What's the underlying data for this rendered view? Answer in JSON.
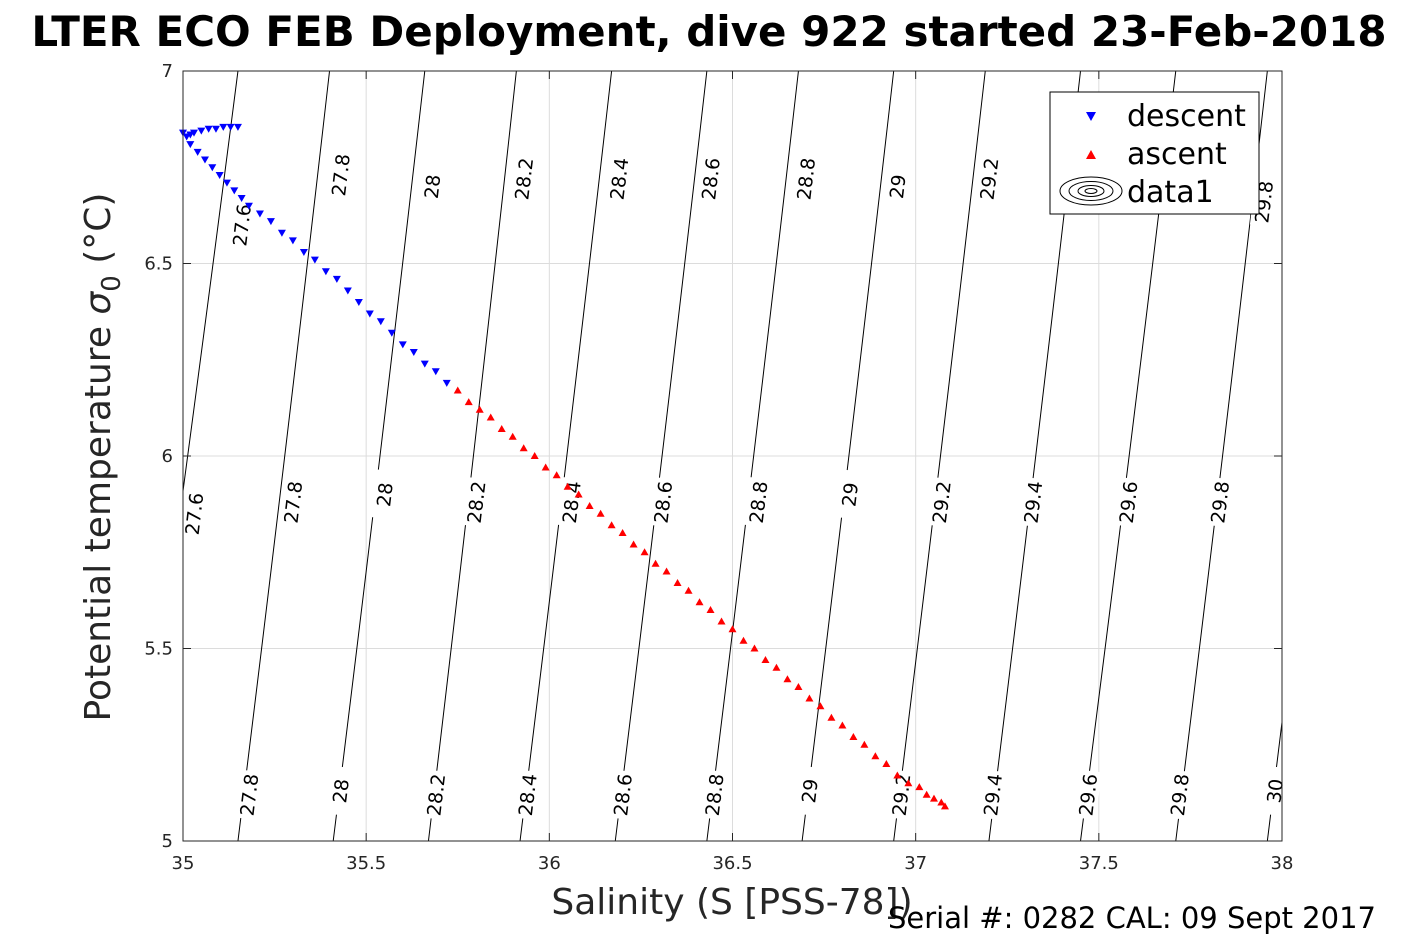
{
  "chart_data": {
    "type": "scatter",
    "title": "LTER ECO FEB Deployment, dive 922 started 23-Feb-2018",
    "xlabel": "Salinity (S [PSS-78])",
    "ylabel_text": "Potential temperature ",
    "ylabel_sigma": "σ",
    "ylabel_sub": "0",
    "ylabel_unit": " (°C)",
    "xlim": [
      35,
      38
    ],
    "ylim": [
      5,
      7
    ],
    "xticks": [
      35,
      35.5,
      36,
      36.5,
      37,
      37.5,
      38
    ],
    "yticks": [
      5,
      5.5,
      6,
      6.5,
      7
    ],
    "xtick_labels": [
      "35",
      "35.5",
      "36",
      "36.5",
      "37",
      "37.5",
      "38"
    ],
    "ytick_labels": [
      "5",
      "5.5",
      "6",
      "6.5",
      "7"
    ],
    "grid": true,
    "legend_position": "top-right",
    "footer": "Serial #: 0282  CAL: 09 Sept 2017",
    "series": [
      {
        "name": "descent",
        "marker": "triangle-down",
        "color": "#0000ff",
        "points": [
          [
            35.15,
            6.855
          ],
          [
            35.13,
            6.855
          ],
          [
            35.11,
            6.855
          ],
          [
            35.09,
            6.85
          ],
          [
            35.07,
            6.85
          ],
          [
            35.05,
            6.845
          ],
          [
            35.03,
            6.84
          ],
          [
            35.02,
            6.835
          ],
          [
            35.01,
            6.83
          ],
          [
            35.0,
            6.84
          ],
          [
            35.02,
            6.81
          ],
          [
            35.04,
            6.79
          ],
          [
            35.06,
            6.77
          ],
          [
            35.08,
            6.75
          ],
          [
            35.1,
            6.73
          ],
          [
            35.12,
            6.71
          ],
          [
            35.14,
            6.69
          ],
          [
            35.16,
            6.67
          ],
          [
            35.18,
            6.65
          ],
          [
            35.21,
            6.63
          ],
          [
            35.24,
            6.61
          ],
          [
            35.27,
            6.58
          ],
          [
            35.3,
            6.56
          ],
          [
            35.33,
            6.53
          ],
          [
            35.36,
            6.51
          ],
          [
            35.39,
            6.48
          ],
          [
            35.42,
            6.46
          ],
          [
            35.45,
            6.43
          ],
          [
            35.48,
            6.4
          ],
          [
            35.51,
            6.37
          ],
          [
            35.54,
            6.35
          ],
          [
            35.57,
            6.32
          ],
          [
            35.6,
            6.29
          ],
          [
            35.63,
            6.27
          ],
          [
            35.66,
            6.24
          ],
          [
            35.69,
            6.22
          ],
          [
            35.72,
            6.19
          ]
        ]
      },
      {
        "name": "ascent",
        "marker": "triangle-up",
        "color": "#ff0000",
        "points": [
          [
            35.75,
            6.17
          ],
          [
            35.78,
            6.14
          ],
          [
            35.81,
            6.12
          ],
          [
            35.84,
            6.1
          ],
          [
            35.87,
            6.07
          ],
          [
            35.9,
            6.05
          ],
          [
            35.93,
            6.02
          ],
          [
            35.96,
            6.0
          ],
          [
            35.99,
            5.97
          ],
          [
            36.02,
            5.95
          ],
          [
            36.05,
            5.92
          ],
          [
            36.08,
            5.9
          ],
          [
            36.11,
            5.87
          ],
          [
            36.14,
            5.85
          ],
          [
            36.17,
            5.82
          ],
          [
            36.2,
            5.8
          ],
          [
            36.23,
            5.77
          ],
          [
            36.26,
            5.75
          ],
          [
            36.29,
            5.72
          ],
          [
            36.32,
            5.7
          ],
          [
            36.35,
            5.67
          ],
          [
            36.38,
            5.65
          ],
          [
            36.41,
            5.62
          ],
          [
            36.44,
            5.6
          ],
          [
            36.47,
            5.57
          ],
          [
            36.5,
            5.55
          ],
          [
            36.53,
            5.52
          ],
          [
            36.56,
            5.5
          ],
          [
            36.59,
            5.47
          ],
          [
            36.62,
            5.45
          ],
          [
            36.65,
            5.42
          ],
          [
            36.68,
            5.4
          ],
          [
            36.71,
            5.37
          ],
          [
            36.74,
            5.35
          ],
          [
            36.77,
            5.32
          ],
          [
            36.8,
            5.3
          ],
          [
            36.83,
            5.27
          ],
          [
            36.86,
            5.25
          ],
          [
            36.89,
            5.22
          ],
          [
            36.92,
            5.2
          ],
          [
            36.95,
            5.17
          ],
          [
            36.98,
            5.15
          ],
          [
            37.01,
            5.14
          ],
          [
            37.03,
            5.12
          ],
          [
            37.05,
            5.11
          ],
          [
            37.07,
            5.1
          ],
          [
            37.08,
            5.09
          ]
        ]
      },
      {
        "name": "data1",
        "type": "contour",
        "color": "#000000",
        "lines": [
          {
            "label": "27.6",
            "bottom": [
              34.87,
              5.0
            ],
            "top": [
              35.15,
              7.0
            ]
          },
          {
            "label": "27.8",
            "bottom": [
              35.15,
              5.0
            ],
            "top": [
              35.4,
              7.0
            ]
          },
          {
            "label": "28",
            "bottom": [
              35.41,
              5.0
            ],
            "top": [
              35.66,
              7.0
            ]
          },
          {
            "label": "28.2",
            "bottom": [
              35.67,
              5.0
            ],
            "top": [
              35.91,
              7.0
            ]
          },
          {
            "label": "28.4",
            "bottom": [
              35.92,
              5.0
            ],
            "top": [
              36.17,
              7.0
            ]
          },
          {
            "label": "28.6",
            "bottom": [
              36.18,
              5.0
            ],
            "top": [
              36.43,
              7.0
            ]
          },
          {
            "label": "28.8",
            "bottom": [
              36.43,
              5.0
            ],
            "top": [
              36.68,
              7.0
            ]
          },
          {
            "label": "29",
            "bottom": [
              36.69,
              5.0
            ],
            "top": [
              36.94,
              7.0
            ]
          },
          {
            "label": "29.2",
            "bottom": [
              36.94,
              5.0
            ],
            "top": [
              37.19,
              7.0
            ]
          },
          {
            "label": "29.4",
            "bottom": [
              37.2,
              5.0
            ],
            "top": [
              37.45,
              7.0
            ]
          },
          {
            "label": "29.6",
            "bottom": [
              37.45,
              5.0
            ],
            "top": [
              37.71,
              7.0
            ]
          },
          {
            "label": "29.8",
            "bottom": [
              37.71,
              5.0
            ],
            "top": [
              37.96,
              7.0
            ]
          },
          {
            "label": "30",
            "bottom": [
              37.96,
              5.0
            ],
            "top": [
              38.21,
              7.0
            ]
          }
        ],
        "labels": [
          {
            "text": "27.6",
            "x": 35.16,
            "y": 6.6
          },
          {
            "text": "27.8",
            "x": 35.43,
            "y": 6.73
          },
          {
            "text": "28",
            "x": 35.68,
            "y": 6.7
          },
          {
            "text": "28.2",
            "x": 35.93,
            "y": 6.72
          },
          {
            "text": "28.4",
            "x": 36.19,
            "y": 6.72
          },
          {
            "text": "28.6",
            "x": 36.44,
            "y": 6.72
          },
          {
            "text": "28.8",
            "x": 36.7,
            "y": 6.72
          },
          {
            "text": "29",
            "x": 36.95,
            "y": 6.7
          },
          {
            "text": "29.2",
            "x": 37.2,
            "y": 6.72
          },
          {
            "text": "29.8",
            "x": 37.95,
            "y": 6.66
          },
          {
            "text": "27.6",
            "x": 35.03,
            "y": 5.85
          },
          {
            "text": "27.8",
            "x": 35.3,
            "y": 5.88
          },
          {
            "text": "28",
            "x": 35.55,
            "y": 5.9
          },
          {
            "text": "28.2",
            "x": 35.8,
            "y": 5.88
          },
          {
            "text": "28.4",
            "x": 36.06,
            "y": 5.88
          },
          {
            "text": "28.6",
            "x": 36.31,
            "y": 5.88
          },
          {
            "text": "28.8",
            "x": 36.57,
            "y": 5.88
          },
          {
            "text": "29",
            "x": 36.82,
            "y": 5.9
          },
          {
            "text": "29.2",
            "x": 37.07,
            "y": 5.88
          },
          {
            "text": "29.4",
            "x": 37.32,
            "y": 5.88
          },
          {
            "text": "29.6",
            "x": 37.58,
            "y": 5.88
          },
          {
            "text": "29.8",
            "x": 37.83,
            "y": 5.88
          },
          {
            "text": "27.8",
            "x": 35.18,
            "y": 5.12
          },
          {
            "text": "28",
            "x": 35.43,
            "y": 5.13
          },
          {
            "text": "28.2",
            "x": 35.69,
            "y": 5.12
          },
          {
            "text": "28.4",
            "x": 35.94,
            "y": 5.12
          },
          {
            "text": "28.6",
            "x": 36.2,
            "y": 5.12
          },
          {
            "text": "28.8",
            "x": 36.45,
            "y": 5.12
          },
          {
            "text": "29",
            "x": 36.71,
            "y": 5.13
          },
          {
            "text": "29.2",
            "x": 36.96,
            "y": 5.12
          },
          {
            "text": "29.4",
            "x": 37.21,
            "y": 5.12
          },
          {
            "text": "29.6",
            "x": 37.47,
            "y": 5.12
          },
          {
            "text": "29.8",
            "x": 37.72,
            "y": 5.12
          },
          {
            "text": "30",
            "x": 37.98,
            "y": 5.13
          }
        ]
      }
    ]
  }
}
